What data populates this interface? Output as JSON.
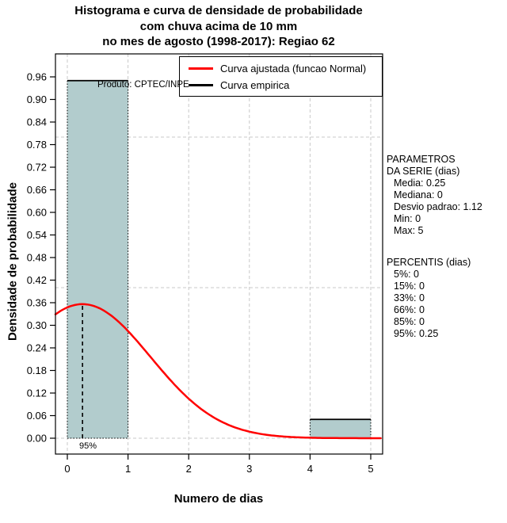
{
  "title": {
    "line1": "Histograma e curva de densidade de probabilidade",
    "line2": "com chuva acima de 10 mm",
    "line3": "no mes de agosto (1998-2017): Regiao 62"
  },
  "axes": {
    "xlabel": "Numero de dias",
    "ylabel": "Densidade de probabilidade"
  },
  "legend": {
    "items": [
      {
        "label": "Curva ajustada (funcao Normal)",
        "color": "#ff0000"
      },
      {
        "label": "Curva empirica",
        "color": "#000000"
      }
    ]
  },
  "watermark": "Produto: CPTEC/INPE",
  "side_panel": {
    "parametros_title1": "PARAMETROS",
    "parametros_title2": "DA SERIE (dias)",
    "parametros_items": [
      "Media: 0.25",
      "Mediana: 0",
      "Desvio padrao: 1.12",
      "Min: 0",
      "Max: 5"
    ],
    "percentis_title": "PERCENTIS (dias)",
    "percentis_items": [
      "5%: 0",
      "15%: 0",
      "33%: 0",
      "66%: 0",
      "85%: 0",
      "95%: 0.25"
    ]
  },
  "chart_data": {
    "type": "bar",
    "subtype": "histogram_with_density",
    "xlim": [
      0,
      5
    ],
    "ylim": [
      0,
      0.96
    ],
    "x_ticks": [
      0,
      1,
      2,
      3,
      4,
      5
    ],
    "y_ticks": [
      0.0,
      0.06,
      0.12,
      0.18,
      0.24,
      0.3,
      0.36,
      0.42,
      0.48,
      0.54,
      0.6,
      0.66,
      0.72,
      0.78,
      0.84,
      0.9,
      0.96
    ],
    "grid": {
      "vertical_x": [
        0,
        1,
        2,
        3,
        4,
        5
      ],
      "horizontal_y": [
        0,
        0.4,
        0.8
      ],
      "color": "#c9c9c9"
    },
    "bars": [
      {
        "x0": 0,
        "x1": 1,
        "density": 0.95
      },
      {
        "x0": 4,
        "x1": 5,
        "density": 0.05
      }
    ],
    "bar_fill": "#b2cccd",
    "bar_border_color": "#000000",
    "normal_curve": {
      "mean": 0.25,
      "sd": 1.12,
      "color": "#ff0000"
    },
    "empirical_color": "#000000",
    "percentile_marker": {
      "x": 0.25,
      "label": "95%"
    }
  }
}
